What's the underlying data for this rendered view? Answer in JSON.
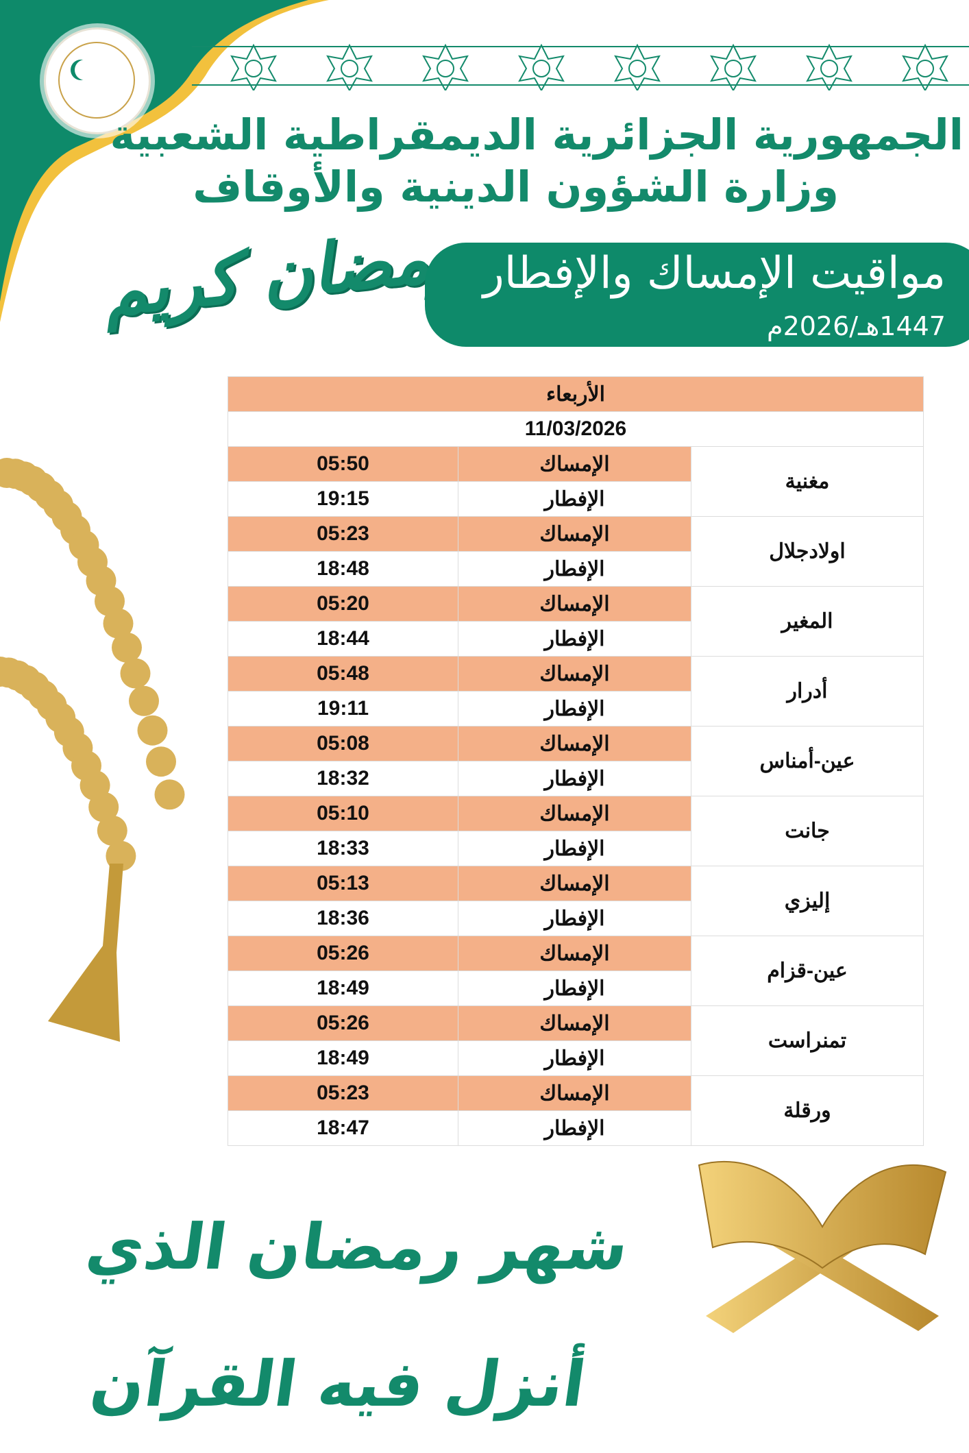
{
  "header": {
    "logo_text": "وزارة الشؤون الدينية والأوقاف",
    "country": "الجمهورية الجزائرية الديمقراطية الشعبية",
    "ministry": "وزارة الشؤون الدينية والأوقاف"
  },
  "banner": {
    "title": "مواقيت الإمساك والإفطار",
    "year": "1447هـ/2026م",
    "greeting": "رمضان كريم"
  },
  "table": {
    "day": "الأربعاء",
    "date": "11/03/2026",
    "imsak_label": "الإمساك",
    "iftar_label": "الإفطار",
    "rows": [
      {
        "city": "مغنية",
        "imsak": "05:50",
        "iftar": "19:15"
      },
      {
        "city": "اولادجلال",
        "imsak": "05:23",
        "iftar": "18:48"
      },
      {
        "city": "المغير",
        "imsak": "05:20",
        "iftar": "18:44"
      },
      {
        "city": "أدرار",
        "imsak": "05:48",
        "iftar": "19:11"
      },
      {
        "city": "عين-أمناس",
        "imsak": "05:08",
        "iftar": "18:32"
      },
      {
        "city": "جانت",
        "imsak": "05:10",
        "iftar": "18:33"
      },
      {
        "city": "إليزي",
        "imsak": "05:13",
        "iftar": "18:36"
      },
      {
        "city": "عين-قزام",
        "imsak": "05:26",
        "iftar": "18:49"
      },
      {
        "city": "تمنراست",
        "imsak": "05:26",
        "iftar": "18:49"
      },
      {
        "city": "ورقلة",
        "imsak": "05:23",
        "iftar": "18:47"
      }
    ]
  },
  "footer": {
    "verse": "شهر رمضان الذي أنزل فيه القرآن"
  },
  "colors": {
    "green": "#0e8a6a",
    "peach": "#f4b088",
    "gold": "#c9a24a"
  }
}
